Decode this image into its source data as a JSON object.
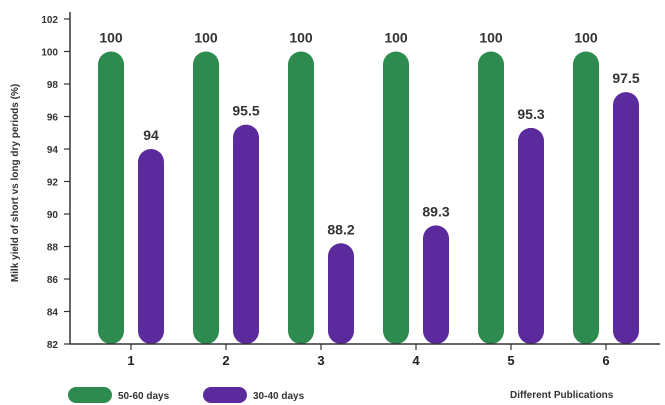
{
  "chart_data": {
    "type": "bar",
    "title": "",
    "ylabel": "Milk yield of short vs long dry periods (%)",
    "xlabel": "Different Publications",
    "categories": [
      "1",
      "2",
      "3",
      "4",
      "5",
      "6"
    ],
    "ylim": [
      82,
      102
    ],
    "yticks": [
      82,
      84,
      86,
      88,
      90,
      92,
      94,
      96,
      98,
      100,
      102
    ],
    "grid": false,
    "legend_position": "bottom-left",
    "series": [
      {
        "name": "50-60 days",
        "color": "#2e8b4f",
        "values": [
          100,
          100,
          100,
          100,
          100,
          100
        ],
        "labels": [
          "100",
          "100",
          "100",
          "100",
          "100",
          "100"
        ]
      },
      {
        "name": "30-40 days",
        "color": "#5b2a9c",
        "values": [
          94,
          95.5,
          88.2,
          89.3,
          95.3,
          97.5
        ],
        "labels": [
          "94",
          "95.5",
          "88.2",
          "89.3",
          "95.3",
          "97.5"
        ]
      }
    ]
  }
}
